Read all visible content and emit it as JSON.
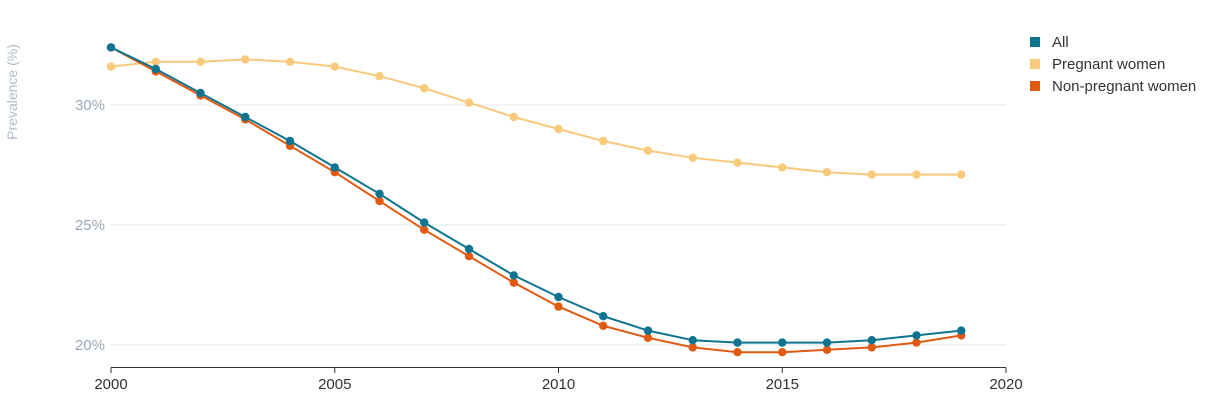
{
  "chart_data": {
    "type": "line",
    "ylabel": "Prevalence (%)",
    "xlabel": "",
    "xlim": [
      2000,
      2020
    ],
    "ylim": [
      19,
      33
    ],
    "x_ticks": [
      2000,
      2005,
      2010,
      2015,
      2020
    ],
    "x_tick_labels": [
      "2000",
      "2005",
      "2010",
      "2015",
      "2020"
    ],
    "y_ticks": [
      20,
      25,
      30
    ],
    "y_tick_labels": [
      "20%",
      "25%",
      "30%"
    ],
    "grid": "horizontal",
    "legend_position": "top-right",
    "x": [
      2000,
      2001,
      2002,
      2003,
      2004,
      2005,
      2006,
      2007,
      2008,
      2009,
      2010,
      2011,
      2012,
      2013,
      2014,
      2015,
      2016,
      2017,
      2018,
      2019
    ],
    "series": [
      {
        "name": "All",
        "color": "#0e7490",
        "values": [
          32.4,
          31.5,
          30.5,
          29.5,
          28.5,
          27.4,
          26.3,
          25.1,
          24.0,
          22.9,
          22.0,
          21.2,
          20.6,
          20.2,
          20.1,
          20.1,
          20.1,
          20.2,
          20.4,
          20.6
        ]
      },
      {
        "name": "Pregnant women",
        "color": "#f9c97c",
        "values": [
          31.6,
          31.8,
          31.8,
          31.9,
          31.8,
          31.6,
          31.2,
          30.7,
          30.1,
          29.5,
          29.0,
          28.5,
          28.1,
          27.8,
          27.6,
          27.4,
          27.2,
          27.1,
          27.1,
          27.1
        ]
      },
      {
        "name": "Non-pregnant women",
        "color": "#e05a12",
        "values": [
          32.4,
          31.4,
          30.4,
          29.4,
          28.3,
          27.2,
          26.0,
          24.8,
          23.7,
          22.6,
          21.6,
          20.8,
          20.3,
          19.9,
          19.7,
          19.7,
          19.8,
          19.9,
          20.1,
          20.4
        ]
      }
    ]
  }
}
